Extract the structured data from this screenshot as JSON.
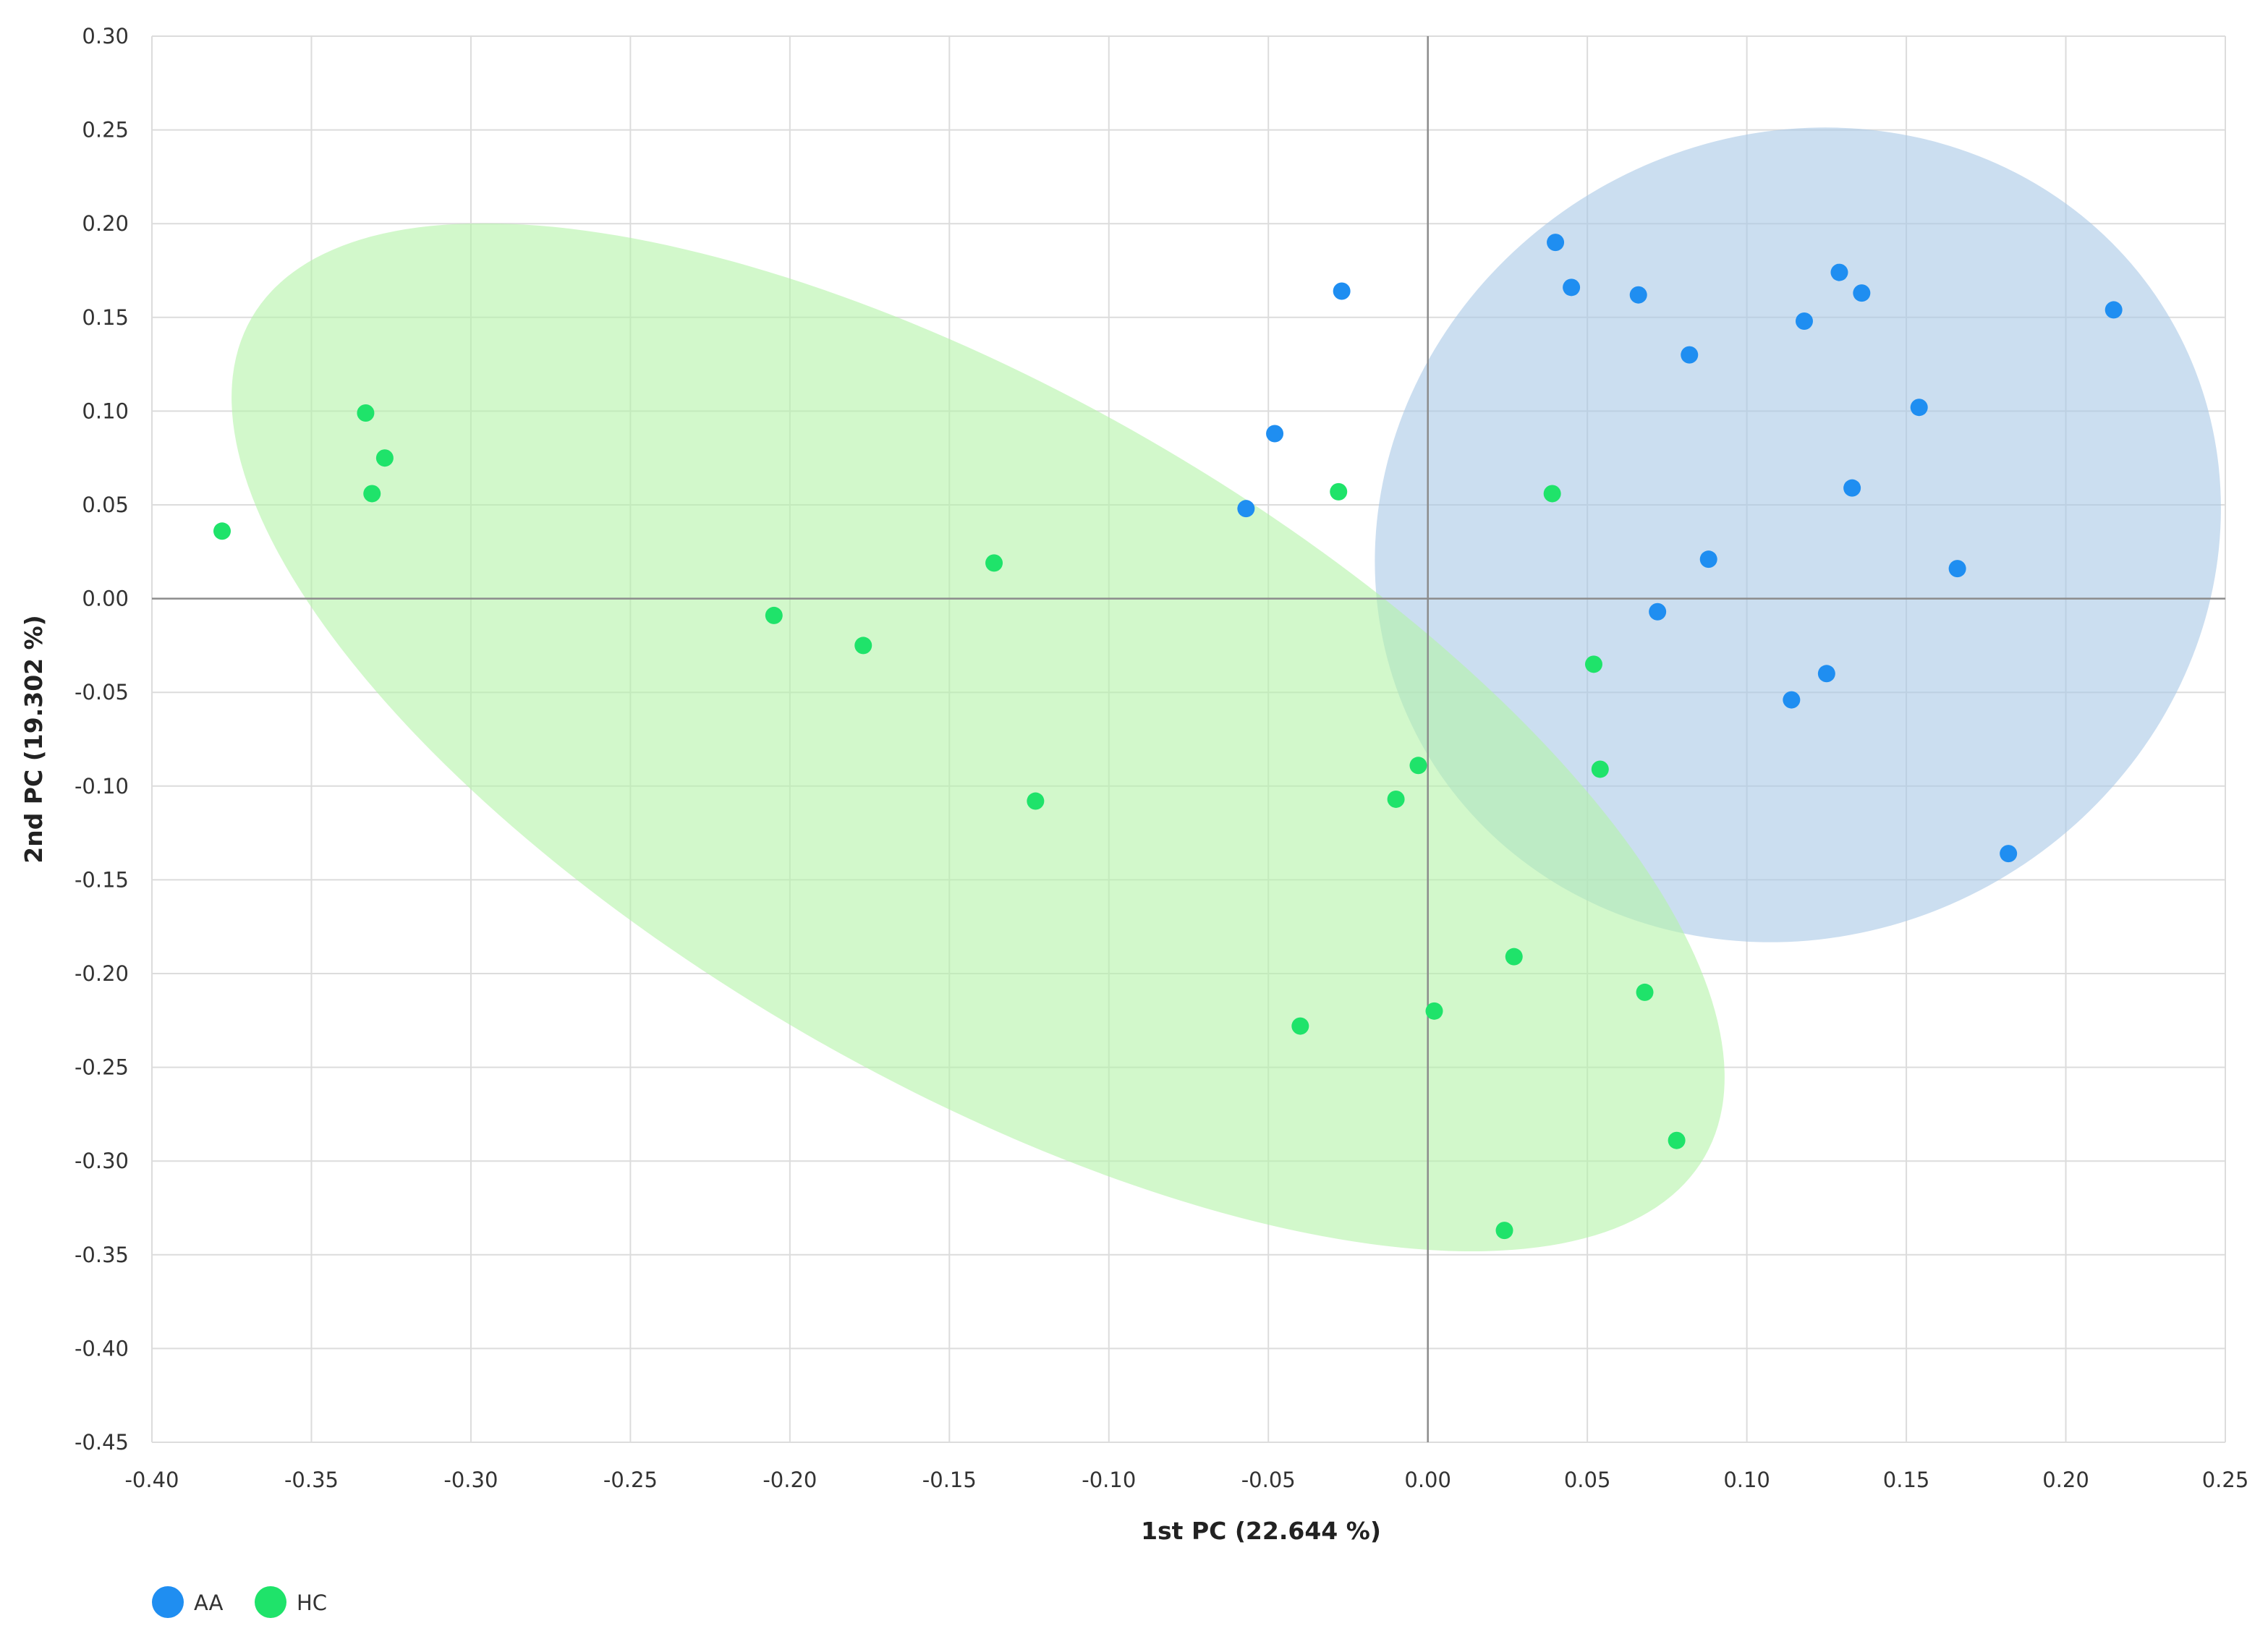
{
  "chart_data": {
    "type": "scatter",
    "title": "",
    "xlabel": "1st PC (22.644 %)",
    "ylabel": "2nd PC (19.302 %)",
    "xlim": [
      -0.4,
      0.25
    ],
    "ylim": [
      -0.45,
      0.3
    ],
    "x_ticks": [
      "-0.40",
      "-0.35",
      "-0.30",
      "-0.25",
      "-0.20",
      "-0.15",
      "-0.10",
      "-0.05",
      "0.00",
      "0.05",
      "0.10",
      "0.15",
      "0.20",
      "0.25"
    ],
    "y_ticks": [
      "0.30",
      "0.25",
      "0.20",
      "0.15",
      "0.10",
      "0.05",
      "0.00",
      "-0.05",
      "-0.10",
      "-0.15",
      "-0.20",
      "-0.25",
      "-0.30",
      "-0.35",
      "-0.40",
      "-0.45"
    ],
    "grid": true,
    "legend_position": "bottom-left",
    "series": [
      {
        "name": "AA",
        "color": "#1f8ef1",
        "ellipse": {
          "cx": 0.116,
          "cy": 0.034,
          "rx": 0.135,
          "ry": 0.213,
          "angle": -30,
          "fill": "#a9c8e6",
          "opacity": 0.6
        },
        "points": [
          {
            "x": -0.027,
            "y": 0.164
          },
          {
            "x": -0.048,
            "y": 0.088
          },
          {
            "x": -0.057,
            "y": 0.048
          },
          {
            "x": 0.04,
            "y": 0.19
          },
          {
            "x": 0.045,
            "y": 0.166
          },
          {
            "x": 0.066,
            "y": 0.162
          },
          {
            "x": 0.082,
            "y": 0.13
          },
          {
            "x": 0.118,
            "y": 0.148
          },
          {
            "x": 0.129,
            "y": 0.174
          },
          {
            "x": 0.136,
            "y": 0.163
          },
          {
            "x": 0.154,
            "y": 0.102
          },
          {
            "x": 0.133,
            "y": 0.059
          },
          {
            "x": 0.088,
            "y": 0.021
          },
          {
            "x": 0.166,
            "y": 0.016
          },
          {
            "x": 0.072,
            "y": -0.007
          },
          {
            "x": 0.125,
            "y": -0.04
          },
          {
            "x": 0.114,
            "y": -0.054
          },
          {
            "x": 0.215,
            "y": 0.154
          },
          {
            "x": 0.182,
            "y": -0.136
          }
        ]
      },
      {
        "name": "HC",
        "color": "#1fe36a",
        "ellipse": {
          "cx": -0.141,
          "cy": -0.074,
          "rx": 0.263,
          "ry": 0.183,
          "angle": 30,
          "fill": "#b4f4a8",
          "opacity": 0.6
        },
        "points": [
          {
            "x": -0.333,
            "y": 0.099
          },
          {
            "x": -0.327,
            "y": 0.075
          },
          {
            "x": -0.331,
            "y": 0.056
          },
          {
            "x": -0.378,
            "y": 0.036
          },
          {
            "x": -0.136,
            "y": 0.019
          },
          {
            "x": -0.205,
            "y": -0.009
          },
          {
            "x": -0.177,
            "y": -0.025
          },
          {
            "x": -0.123,
            "y": -0.108
          },
          {
            "x": -0.028,
            "y": 0.057
          },
          {
            "x": 0.039,
            "y": 0.056
          },
          {
            "x": 0.052,
            "y": -0.035
          },
          {
            "x": -0.003,
            "y": -0.089
          },
          {
            "x": -0.01,
            "y": -0.107
          },
          {
            "x": 0.054,
            "y": -0.091
          },
          {
            "x": 0.027,
            "y": -0.191
          },
          {
            "x": 0.068,
            "y": -0.21
          },
          {
            "x": 0.002,
            "y": -0.22
          },
          {
            "x": -0.04,
            "y": -0.228
          },
          {
            "x": 0.078,
            "y": -0.289
          },
          {
            "x": 0.024,
            "y": -0.337
          }
        ]
      }
    ]
  }
}
